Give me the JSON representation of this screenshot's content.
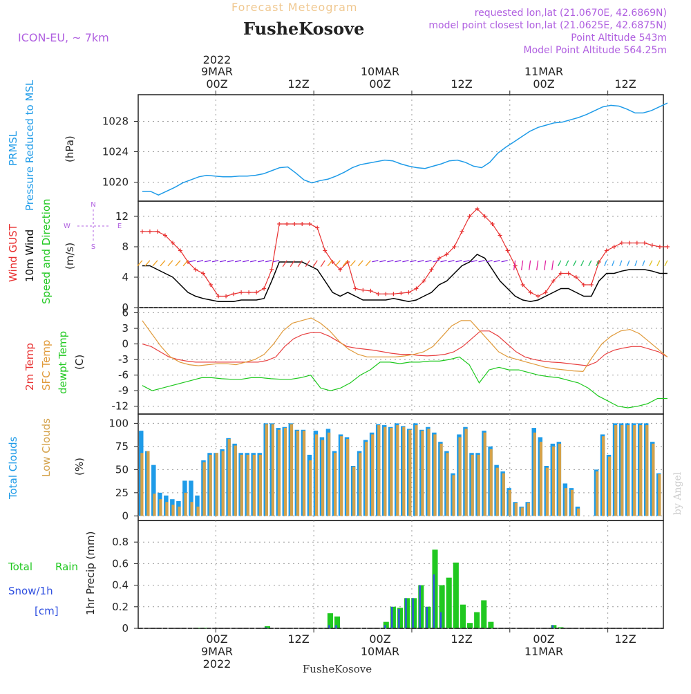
{
  "header": {
    "forecast_label": "Forecast Meteogram",
    "station": "FusheKosove",
    "model": "ICON-EU, ~ 7km",
    "requested": "requested lon,lat (21.0670E, 42.6869N)",
    "closest": "model point closest lon,lat (21.0625E, 42.6875N)",
    "alt": "Point Altitude 543m",
    "model_alt": "Model Point Altitude 564.25m",
    "credit": "by Angel",
    "footer_station": "FusheKosove"
  },
  "colors": {
    "prmsl": "#1e9be8",
    "gust": "#e83030",
    "wind10": "#000000",
    "temp2m": "#e84040",
    "sfc": "#e09a3a",
    "dew": "#1ec81e",
    "total_cloud": "#1e9be8",
    "low_cloud": "#d4a24a",
    "rain": "#20c820",
    "snow": "#3050e0",
    "purple": "#b060e0"
  },
  "time_axis": {
    "top_years": [
      "2022",
      "",
      ""
    ],
    "top_dates": [
      "9MAR",
      "10MAR",
      "11MAR"
    ],
    "ticks": [
      "00Z",
      "12Z",
      "00Z",
      "12Z",
      "00Z",
      "12Z"
    ],
    "bottom_dates": [
      "9MAR",
      "10MAR",
      "11MAR"
    ],
    "bottom_years": [
      "2022",
      "",
      ""
    ]
  },
  "panels": {
    "prmsl": {
      "label1": "PRMSL",
      "label2": "Pressure Reduced to MSL",
      "unit": "(hPa)",
      "yticks": [
        "1020",
        "1024",
        "1028"
      ]
    },
    "wind": {
      "label1": "Wind GUST",
      "label2": "10m Wind",
      "label3": "Speed and Direction",
      "unit": "(m/s)",
      "compass": "N",
      "compass_w": "W",
      "compass_e": "E",
      "compass_s": "S",
      "yticks": [
        "0",
        "4",
        "8",
        "12"
      ]
    },
    "temp": {
      "label1": "2m Temp",
      "label2": "SFC Temp",
      "label3": "dewpt Temp",
      "unit": "(C)",
      "yticks": [
        "6",
        "3",
        "0",
        "-3",
        "-6",
        "-9",
        "-12"
      ]
    },
    "cloud": {
      "label1": "Total Clouds",
      "label2": "Low Clouds",
      "unit": "(%)",
      "yticks": [
        "0",
        "25",
        "50",
        "75",
        "100"
      ]
    },
    "precip": {
      "label1": "Total",
      "label1b": "Rain",
      "label2": "Snow/1h",
      "label3": "[cm]",
      "ylabel": "1hr Precip (mm)",
      "yticks": [
        "0",
        "0.2",
        "0.4",
        "0.6",
        "0.8"
      ]
    }
  },
  "chart_data": {
    "type": "line",
    "x_hours": [
      -9,
      -8,
      -7,
      -6,
      -5,
      -4,
      -3,
      -2,
      -1,
      0,
      1,
      2,
      3,
      4,
      5,
      6,
      7,
      8,
      9,
      10,
      11,
      12,
      13,
      14,
      15,
      16,
      17,
      18,
      19,
      20,
      21,
      22,
      23,
      24,
      25,
      26,
      27,
      28,
      29,
      30,
      31,
      32,
      33,
      34,
      35,
      36,
      37,
      38,
      39,
      40,
      41,
      42,
      43,
      44,
      45,
      46,
      47,
      48,
      49,
      50,
      51,
      52,
      53,
      54,
      55,
      56,
      57,
      58,
      59,
      60,
      61,
      62,
      63,
      64
    ],
    "x_start_hour": -9,
    "prmsl": [
      1018.8,
      1018.8,
      1018.3,
      1018.8,
      1019.3,
      1019.9,
      1020.3,
      1020.7,
      1020.9,
      1020.8,
      1020.7,
      1020.7,
      1020.8,
      1020.8,
      1020.9,
      1021.1,
      1021.5,
      1021.9,
      1022.0,
      1021.2,
      1020.3,
      1019.9,
      1020.2,
      1020.4,
      1020.8,
      1021.3,
      1021.9,
      1022.3,
      1022.5,
      1022.7,
      1022.9,
      1022.8,
      1022.4,
      1022.1,
      1021.9,
      1021.8,
      1022.1,
      1022.4,
      1022.8,
      1022.9,
      1022.6,
      1022.1,
      1021.9,
      1022.6,
      1023.8,
      1024.6,
      1025.3,
      1026.0,
      1026.7,
      1027.2,
      1027.5,
      1027.8,
      1027.9,
      1028.2,
      1028.5,
      1028.9,
      1029.4,
      1029.9,
      1030.1,
      1030.0,
      1029.6,
      1029.1,
      1029.1,
      1029.4,
      1029.9,
      1030.4
    ],
    "gust": [
      10.0,
      10.0,
      10.0,
      9.5,
      8.5,
      7.5,
      6.0,
      5.0,
      4.5,
      3.0,
      1.5,
      1.5,
      1.8,
      2.0,
      2.0,
      2.0,
      2.5,
      5.0,
      11.0,
      11.0,
      11.0,
      11.0,
      11.0,
      10.5,
      7.5,
      6.0,
      5.0,
      6.0,
      2.5,
      2.3,
      2.2,
      1.8,
      1.8,
      1.8,
      1.9,
      2.0,
      2.5,
      3.5,
      5.0,
      6.5,
      7.0,
      8.0,
      10.0,
      12.0,
      13.0,
      12.0,
      11.0,
      9.5,
      7.5,
      5.5,
      3.0,
      2.0,
      1.5,
      2.0,
      3.5,
      4.5,
      4.5,
      4.0,
      3.0,
      3.0,
      6.0,
      7.5,
      8.0,
      8.5,
      8.5,
      8.5,
      8.5,
      8.2,
      8.0,
      8.0
    ],
    "wind10": [
      5.5,
      5.5,
      5.0,
      4.5,
      4.0,
      3.0,
      2.0,
      1.5,
      1.2,
      1.0,
      0.8,
      0.8,
      0.8,
      1.0,
      1.0,
      1.0,
      1.2,
      3.5,
      6.0,
      6.0,
      6.0,
      6.0,
      5.5,
      5.0,
      3.5,
      2.0,
      1.5,
      2.0,
      1.5,
      1.0,
      1.0,
      1.0,
      1.0,
      1.2,
      1.0,
      0.8,
      1.0,
      1.5,
      2.0,
      3.0,
      3.5,
      4.5,
      5.5,
      6.0,
      7.0,
      6.5,
      5.0,
      3.5,
      2.5,
      1.5,
      1.0,
      0.8,
      1.0,
      1.5,
      2.0,
      2.5,
      2.5,
      2.0,
      1.5,
      1.5,
      3.5,
      4.5,
      4.5,
      4.8,
      5.0,
      5.0,
      5.0,
      4.8,
      4.5,
      4.5
    ],
    "temp2m": [
      0.0,
      -0.5,
      -1.5,
      -2.5,
      -3.0,
      -3.3,
      -3.5,
      -3.5,
      -3.5,
      -3.5,
      -3.5,
      -3.5,
      -3.5,
      -3.5,
      -3.2,
      -2.5,
      -0.5,
      1.0,
      1.8,
      2.2,
      2.2,
      1.5,
      0.5,
      -0.5,
      -0.8,
      -1.0,
      -1.2,
      -1.5,
      -1.8,
      -2.0,
      -2.0,
      -2.2,
      -2.3,
      -2.2,
      -2.0,
      -1.5,
      -0.5,
      1.0,
      2.5,
      2.5,
      1.5,
      0.0,
      -1.5,
      -2.5,
      -3.0,
      -3.3,
      -3.5,
      -3.6,
      -3.8,
      -4.0,
      -4.2,
      -3.5,
      -2.0,
      -1.2,
      -0.8,
      -0.5,
      -0.5,
      -1.0,
      -1.5,
      -2.5
    ],
    "sfc": [
      4.5,
      2.0,
      -0.5,
      -2.5,
      -3.5,
      -4.0,
      -4.2,
      -4.0,
      -3.8,
      -3.8,
      -4.0,
      -3.5,
      -3.0,
      -2.0,
      0.0,
      2.5,
      4.0,
      4.5,
      5.0,
      4.0,
      2.5,
      0.5,
      -1.0,
      -2.0,
      -2.5,
      -2.5,
      -2.5,
      -2.5,
      -2.3,
      -2.0,
      -1.5,
      -0.5,
      1.5,
      3.5,
      4.5,
      4.5,
      2.5,
      0.5,
      -1.5,
      -2.5,
      -3.0,
      -3.5,
      -4.0,
      -4.5,
      -4.8,
      -5.0,
      -5.2,
      -5.3,
      -2.5,
      0.0,
      1.5,
      2.5,
      2.8,
      2.0,
      0.5,
      -1.0,
      -2.5
    ],
    "dew": [
      -8.0,
      -9.0,
      -8.5,
      -8.0,
      -7.5,
      -7.0,
      -6.5,
      -6.5,
      -6.7,
      -6.8,
      -6.8,
      -6.5,
      -6.5,
      -6.7,
      -6.8,
      -6.8,
      -6.5,
      -6.0,
      -8.5,
      -9.0,
      -8.5,
      -7.5,
      -6.0,
      -5.0,
      -3.5,
      -3.5,
      -3.8,
      -3.5,
      -3.5,
      -3.3,
      -3.3,
      -3.0,
      -2.5,
      -4.0,
      -7.5,
      -5.0,
      -4.5,
      -5.0,
      -5.0,
      -5.5,
      -6.0,
      -6.3,
      -6.5,
      -7.0,
      -7.5,
      -8.5,
      -10.0,
      -11.0,
      -12.0,
      -12.3,
      -12.0,
      -11.5,
      -10.5,
      -10.5
    ],
    "cloud_total": [
      92,
      70,
      55,
      25,
      22,
      18,
      16,
      38,
      38,
      22,
      60,
      68,
      68,
      72,
      84,
      78,
      68,
      68,
      68,
      68,
      100,
      100,
      95,
      96,
      100,
      93,
      93,
      66,
      92,
      85,
      94,
      70,
      88,
      85,
      54,
      70,
      82,
      90,
      99,
      98,
      96,
      100,
      97,
      94,
      100,
      93,
      96,
      90,
      80,
      70,
      46,
      88,
      96,
      68,
      68,
      92,
      75,
      55,
      48,
      30,
      15,
      10,
      15,
      95,
      85,
      54,
      78,
      80,
      35,
      30,
      10,
      0,
      0,
      50,
      88,
      66,
      100,
      100,
      100,
      100,
      100,
      100,
      80,
      46
    ],
    "cloud_low": [
      68,
      70,
      24,
      18,
      15,
      12,
      10,
      25,
      15,
      10,
      58,
      66,
      68,
      70,
      83,
      76,
      66,
      66,
      66,
      66,
      99,
      99,
      93,
      95,
      99,
      92,
      92,
      60,
      88,
      82,
      90,
      68,
      86,
      83,
      53,
      68,
      80,
      88,
      98,
      96,
      95,
      98,
      96,
      93,
      98,
      92,
      94,
      88,
      78,
      68,
      44,
      85,
      94,
      66,
      66,
      90,
      72,
      52,
      46,
      28,
      14,
      9,
      14,
      90,
      80,
      52,
      75,
      78,
      30,
      28,
      8,
      0,
      0,
      48,
      86,
      64,
      98,
      98,
      98,
      98,
      98,
      98,
      78,
      45
    ],
    "rain": [
      0,
      0,
      0,
      0,
      0,
      0,
      0,
      0,
      0.005,
      0.005,
      0,
      0,
      0,
      0,
      0,
      0,
      0,
      0,
      0.02,
      0,
      0,
      0,
      0,
      0,
      0,
      0,
      0,
      0.14,
      0.11,
      0,
      0,
      0,
      0,
      0,
      0,
      0.06,
      0.2,
      0.19,
      0.28,
      0.28,
      0.4,
      0.2,
      0.73,
      0.4,
      0.47,
      0.61,
      0.22,
      0.05,
      0.15,
      0.26,
      0.06,
      0,
      0,
      0,
      0,
      0,
      0,
      0,
      0,
      0.03,
      0.01,
      0,
      0,
      0,
      0,
      0,
      0,
      0,
      0,
      0,
      0,
      0,
      0,
      0,
      0
    ],
    "snow": [
      0,
      0,
      0,
      0,
      0,
      0,
      0,
      0,
      0,
      0,
      0,
      0,
      0,
      0,
      0,
      0,
      0,
      0,
      0.01,
      0,
      0,
      0,
      0,
      0,
      0,
      0,
      0,
      0.03,
      0.03,
      0,
      0,
      0,
      0,
      0,
      0,
      0.03,
      0.2,
      0.18,
      0.28,
      0.28,
      0.4,
      0.2,
      0.5,
      0.15,
      0,
      0,
      0,
      0,
      0,
      0,
      0,
      0,
      0,
      0,
      0,
      0,
      0,
      0,
      0,
      0.03,
      0,
      0,
      0,
      0,
      0,
      0,
      0,
      0,
      0,
      0,
      0,
      0,
      0,
      0,
      0
    ],
    "ylim_prmsl": [
      1017.5,
      1031.5
    ],
    "ylim_wind": [
      0,
      14
    ],
    "ylim_temp": [
      -13.5,
      7
    ],
    "ylim_cloud": [
      -5,
      110
    ],
    "ylim_precip": [
      0,
      1.0
    ]
  }
}
